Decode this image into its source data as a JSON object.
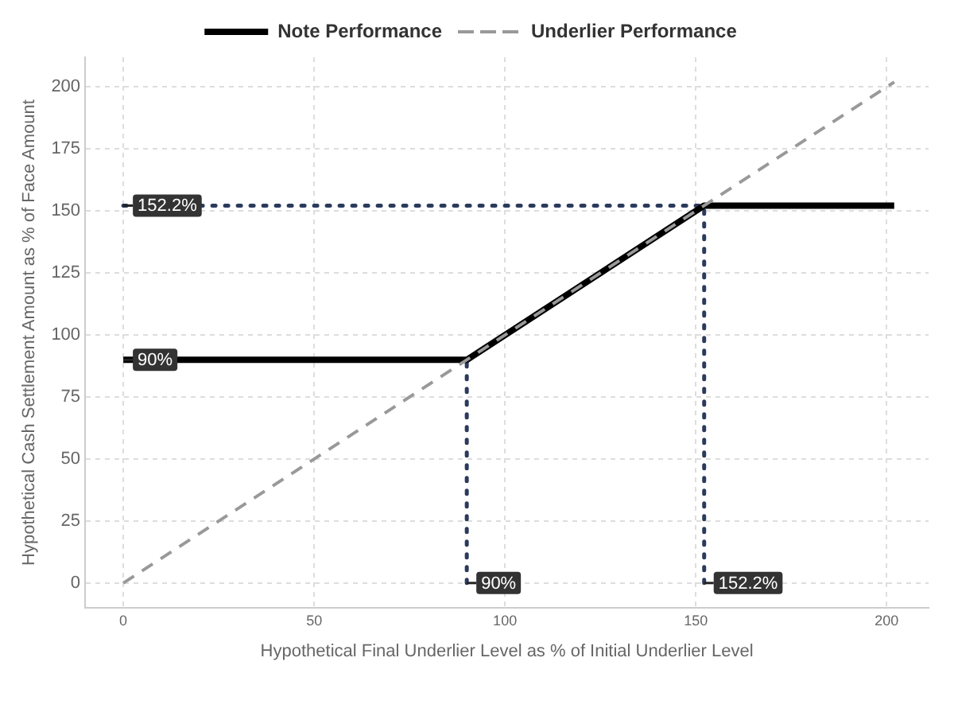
{
  "chart_data": {
    "type": "line",
    "xlabel": "Hypothetical Final Underlier Level as % of Initial Underlier Level",
    "ylabel": "Hypothetical Cash Settlement Amount as % of Face Amount",
    "series": [
      {
        "name": "Note Performance",
        "color": "#000000",
        "x": [
          0,
          90,
          152.2,
          202
        ],
        "values": [
          90,
          90,
          152.2,
          152.2
        ],
        "line_style": "solid"
      },
      {
        "name": "Underlier Performance",
        "color": "#999999",
        "x": [
          0,
          202
        ],
        "values": [
          0,
          202
        ],
        "line_style": "dashed"
      },
      {
        "color": "#2b3a5c",
        "x": [
          0,
          152.2
        ],
        "values": [
          152.2,
          152.2
        ],
        "line_style": "dotted"
      },
      {
        "color": "#2b3a5c",
        "x": [
          90,
          90
        ],
        "values": [
          0,
          90
        ],
        "line_style": "dotted"
      },
      {
        "color": "#2b3a5c",
        "x": [
          152.2,
          152.2
        ],
        "values": [
          0,
          152.2
        ],
        "line_style": "dotted"
      }
    ],
    "annotations": [
      {
        "text": "152.2%",
        "x": 0,
        "y": 152.2
      },
      {
        "text": "90%",
        "x": 0,
        "y": 90
      },
      {
        "text": "90%",
        "x": 90,
        "y": 0
      },
      {
        "text": "152.2%",
        "x": 152.2,
        "y": 0
      }
    ],
    "xlim": [
      -10,
      211
    ],
    "xticks": [
      0,
      50,
      100,
      150,
      200
    ],
    "ylim": [
      -10,
      212
    ],
    "yticks": [
      0,
      25,
      50,
      75,
      100,
      125,
      150,
      175,
      200
    ],
    "grid": true,
    "legend": "top",
    "marker": "none"
  }
}
